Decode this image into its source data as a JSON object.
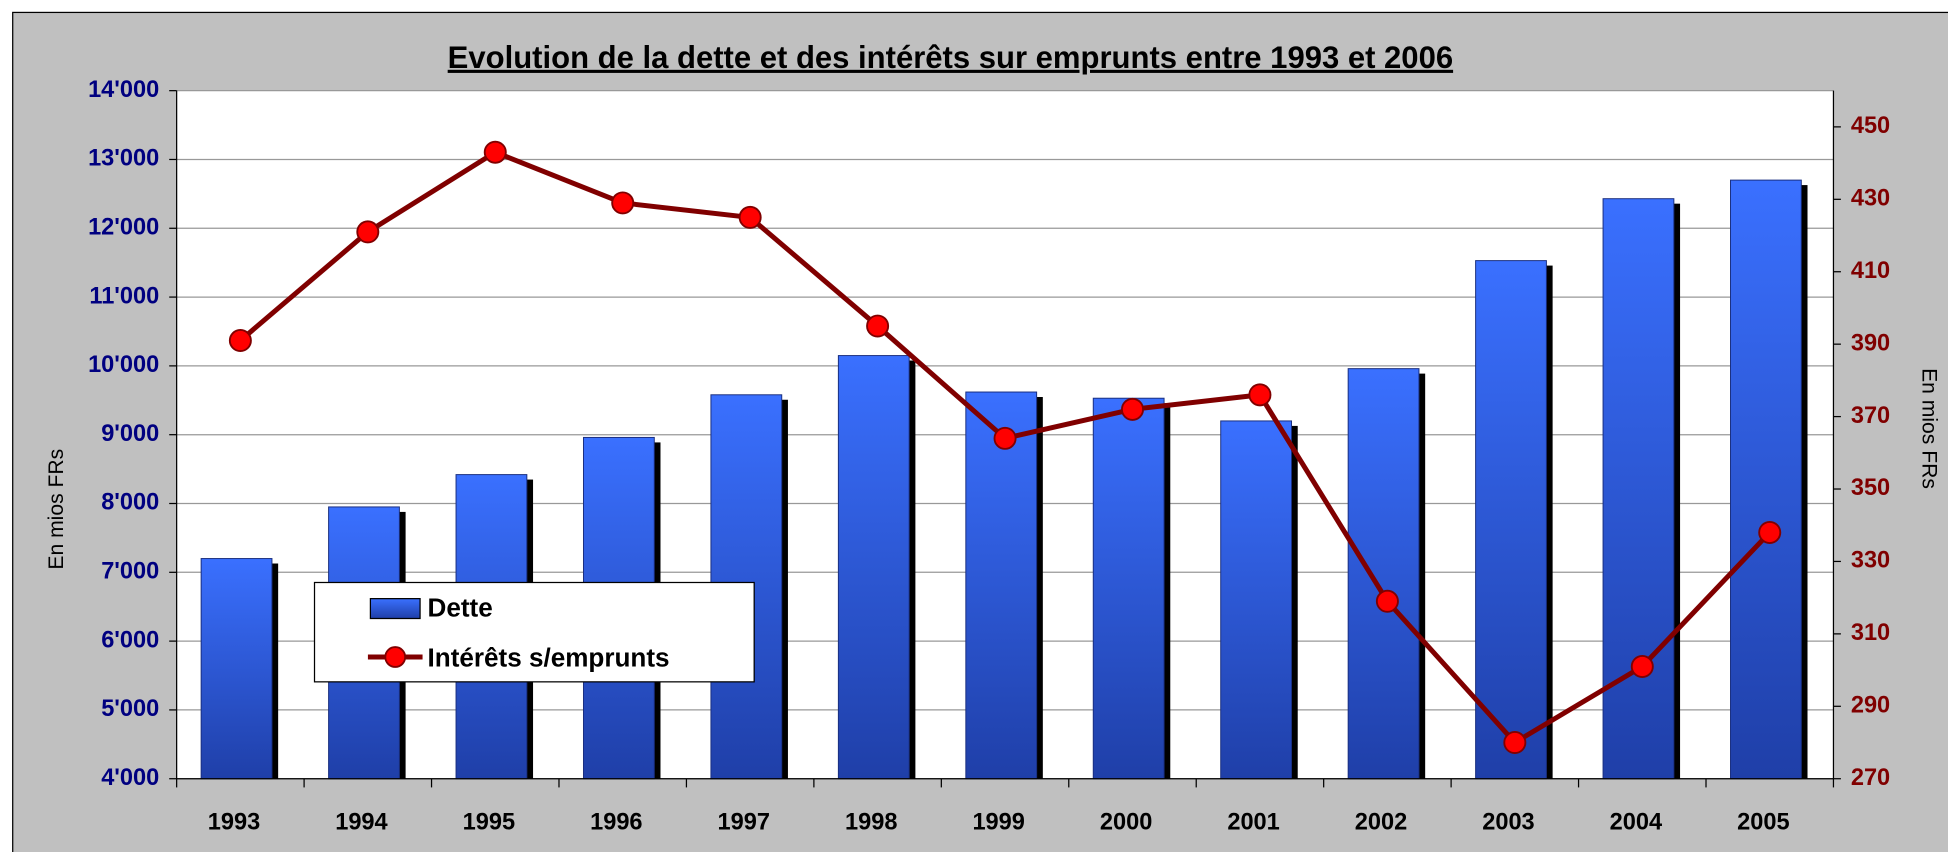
{
  "chart_data": {
    "type": "bar",
    "title": "Evolution de la dette et des intérêts sur emprunts entre 1993 et 2006",
    "y_label": "En mios FRs",
    "y2_label": "En mios FRs",
    "categories": [
      "1993",
      "1994",
      "1995",
      "1996",
      "1997",
      "1998",
      "1999",
      "2000",
      "2001",
      "2002",
      "2003",
      "2004",
      "2005"
    ],
    "series": [
      {
        "name": "Dette",
        "type": "bar",
        "color": "#3366ff",
        "values": [
          7200,
          7950,
          8420,
          8960,
          9580,
          10150,
          9620,
          9530,
          9200,
          9960,
          11530,
          12430,
          12700
        ]
      },
      {
        "name": "Intérêts s/emprunts",
        "type": "line",
        "axis": "y2",
        "color": "#800000",
        "marker_color": "#ff0000",
        "values": [
          391,
          421,
          443,
          429,
          425,
          395,
          364,
          372,
          376,
          319,
          280,
          301,
          338
        ]
      }
    ],
    "ylim": [
      4000,
      14000
    ],
    "yticks": [
      {
        "value": 4000,
        "label": "4'000"
      },
      {
        "value": 5000,
        "label": "5'000"
      },
      {
        "value": 6000,
        "label": "6'000"
      },
      {
        "value": 7000,
        "label": "7'000"
      },
      {
        "value": 8000,
        "label": "8'000"
      },
      {
        "value": 9000,
        "label": "9'000"
      },
      {
        "value": 10000,
        "label": "10'000"
      },
      {
        "value": 11000,
        "label": "11'000"
      },
      {
        "value": 12000,
        "label": "12'000"
      },
      {
        "value": 13000,
        "label": "13'000"
      },
      {
        "value": 14000,
        "label": "14'000"
      }
    ],
    "y2lim": [
      270,
      460
    ],
    "y2ticks": [
      270,
      290,
      310,
      330,
      350,
      370,
      390,
      410,
      430,
      450
    ],
    "grid": true,
    "y_tick_color": "#000080",
    "y2_tick_color": "#800000"
  }
}
